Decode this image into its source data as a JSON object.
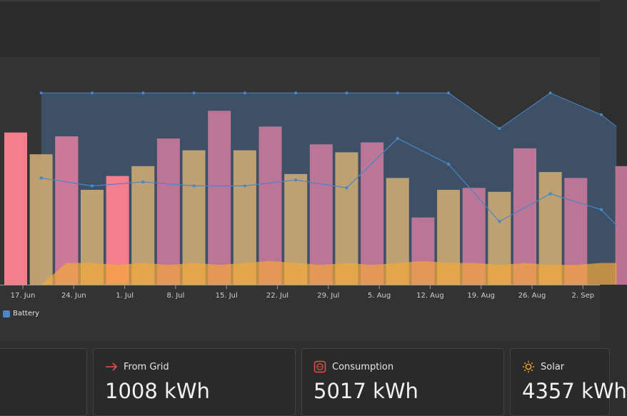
{
  "chart_data": {
    "type": "bar",
    "x_tick_labels": [
      "17. Jun",
      "24. Jun",
      "1. Jul",
      "8. Jul",
      "15. Jul",
      "22. Jul",
      "29. Jul",
      "5. Aug",
      "12. Aug",
      "19. Aug",
      "26. Aug",
      "2. Sep"
    ],
    "series": [
      {
        "name": "",
        "kind": "bar",
        "color": "#f47f8c",
        "bars": [
          [
            0,
            77
          ],
          [
            1,
            75
          ],
          [
            2,
            55
          ]
        ]
      },
      {
        "name": "",
        "kind": "bar",
        "color": "#c9a874",
        "bars": [
          [
            0.5,
            66
          ],
          [
            1.5,
            48
          ],
          [
            2.5,
            60
          ],
          [
            3.5,
            68
          ],
          [
            4.5,
            68
          ],
          [
            5.5,
            56
          ],
          [
            6.5,
            67
          ],
          [
            7.5,
            54
          ],
          [
            8.5,
            48
          ],
          [
            9.5,
            47
          ],
          [
            10.5,
            57
          ]
        ]
      },
      {
        "name": "",
        "kind": "bar",
        "color": "#c6789a",
        "bars": [
          [
            1,
            75
          ],
          [
            3,
            74
          ],
          [
            4,
            88
          ],
          [
            5,
            80
          ],
          [
            6,
            71
          ],
          [
            7,
            72
          ],
          [
            8,
            34
          ],
          [
            9,
            49
          ],
          [
            10,
            69
          ],
          [
            11,
            54
          ],
          [
            12,
            60
          ]
        ]
      },
      {
        "name": "",
        "kind": "area",
        "color": "#f2a83c",
        "x": [
          1,
          2,
          3,
          4,
          5,
          6,
          7,
          8,
          9,
          10,
          11,
          12,
          13,
          14,
          15,
          16,
          17,
          18,
          19,
          20,
          21,
          22,
          23
        ],
        "values": [
          0,
          11,
          11,
          10,
          11,
          10,
          11,
          10,
          11,
          12,
          11,
          10,
          11,
          10,
          11,
          12,
          11,
          11,
          10,
          11,
          10,
          10,
          11
        ]
      },
      {
        "name": "Battery",
        "kind": "area-line",
        "color": "#4a86c8",
        "x": [
          1,
          3,
          5,
          7,
          9,
          11,
          13,
          15,
          17,
          19,
          21,
          23
        ],
        "upper": [
          97,
          97,
          97,
          97,
          97,
          97,
          97,
          97,
          97,
          79,
          97,
          86
        ],
        "line": [
          54,
          50,
          52,
          50,
          50,
          53,
          49,
          74,
          61,
          32,
          46,
          38
        ]
      }
    ],
    "ylim": [
      0,
      100
    ],
    "legend": [
      "Battery"
    ]
  },
  "legend": {
    "label": "Battery"
  },
  "cards": [
    {
      "title": "",
      "value": ""
    },
    {
      "title": "From Grid",
      "value": "1008 kWh",
      "icon": "arrow-right-icon",
      "icon_color": "#e0524a"
    },
    {
      "title": "Consumption",
      "value": "5017 kWh",
      "icon": "plug-icon",
      "icon_color": "#e0524a"
    },
    {
      "title": "Solar",
      "value": "4357 kWh",
      "icon": "sun-icon",
      "icon_color": "#f0a030"
    }
  ]
}
